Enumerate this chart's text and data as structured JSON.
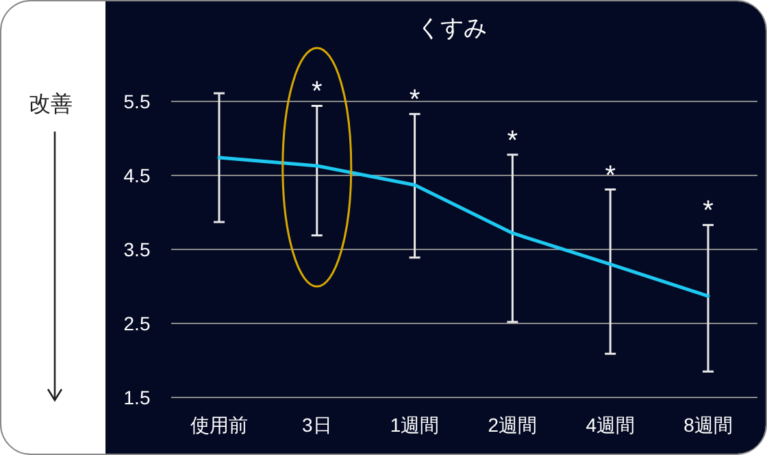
{
  "chart_data": {
    "type": "line",
    "title": "くすみ",
    "ylabel": "改善",
    "categories": [
      "使用前",
      "3日",
      "1週間",
      "2週間",
      "4週間",
      "8週間"
    ],
    "series": [
      {
        "color": "#1ec8f0",
        "values": [
          4.74,
          4.63,
          4.37,
          3.72,
          3.3,
          2.87
        ],
        "errors": [
          [
            3.87,
            5.61
          ],
          [
            3.69,
            5.44
          ],
          [
            3.39,
            5.33
          ],
          [
            2.52,
            4.78
          ],
          [
            2.09,
            4.31
          ],
          [
            1.85,
            3.83
          ]
        ]
      }
    ],
    "ylim": [
      1.5,
      5.5
    ],
    "yticks": [
      1.5,
      2.5,
      3.5,
      4.5,
      5.5
    ],
    "grid": "y",
    "marker": "none",
    "line_style": "solid",
    "annotations": [
      {
        "text": "*",
        "x": "3日",
        "y": 5.44
      },
      {
        "text": "*",
        "x": "1週間",
        "y": 5.33
      },
      {
        "text": "*",
        "x": "2週間",
        "y": 4.78
      },
      {
        "text": "*",
        "x": "4週間",
        "y": 4.31
      },
      {
        "text": "*",
        "x": "8週間",
        "y": 3.83
      }
    ]
  }
}
